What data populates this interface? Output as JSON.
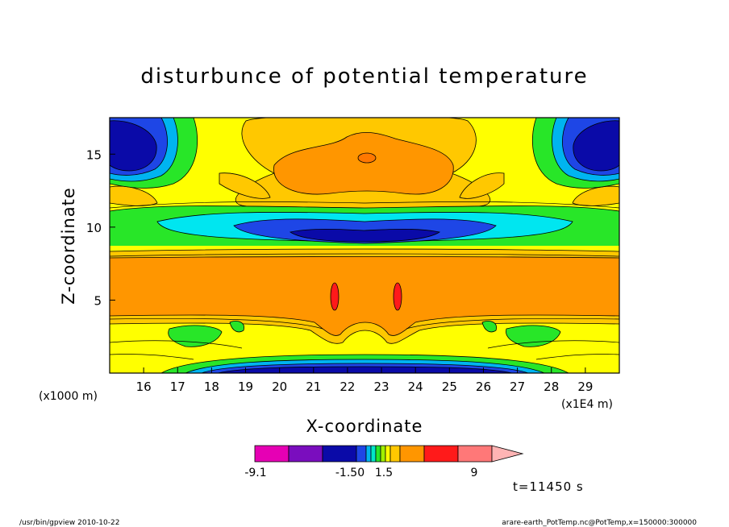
{
  "chart_data": {
    "type": "heatmap",
    "title": "disturbunce of potential temperature",
    "xlabel": "X-coordinate",
    "ylabel": "Z-coordinate",
    "x_unit_left": "(x1000 m)",
    "x_unit_right": "(x1E4 m)",
    "xlim": [
      15.0,
      30.0
    ],
    "ylim": [
      0.0,
      17.5
    ],
    "x_ticks": [
      "16",
      "17",
      "18",
      "19",
      "20",
      "21",
      "22",
      "23",
      "24",
      "25",
      "26",
      "27",
      "28",
      "29"
    ],
    "y_ticks": [
      "5",
      "10",
      "15"
    ],
    "colorbar": {
      "labels": [
        "-9.1",
        "-1.50",
        "1.5",
        "9"
      ],
      "colors": [
        "#e600b4",
        "#7a0dbe",
        "#0a0aa8",
        "#1e46e6",
        "#00b4f0",
        "#00e6c8",
        "#28e628",
        "#a0f000",
        "#ffff00",
        "#ffc800",
        "#ff9600",
        "#ff1a1a",
        "#ff7878",
        "#ffb4b4"
      ]
    },
    "time_label": "t=11450 s",
    "grid": false
  },
  "footer": {
    "program": "/usr/bin/gpview   2010-10-22",
    "source": "arare-earth_PotTemp.nc@PotTemp,x=150000:300000"
  }
}
